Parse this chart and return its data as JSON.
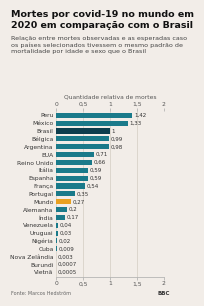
{
  "title": "Mortes por covid-19 no mundo em\n2020 em comparação com o Brasil",
  "subtitle": "Relação entre mortes observadas e as esperadas caso\nos países selecionados tivessem o mesmo padrão de\nmortalidade por idade e sexo que o Brasil",
  "xlabel": "Quantidade relativa de mortes",
  "source": "Fonte: Marcos Hedström",
  "categories": [
    "Peru",
    "México",
    "Brasil",
    "Bélgica",
    "Argentina",
    "EUA",
    "Reino Unido",
    "Itália",
    "Espanha",
    "França",
    "Portugal",
    "Mundo",
    "Alemanha",
    "Índia",
    "Venezuela",
    "Uruguai",
    "Nigéria",
    "Cuba",
    "Nova Zelândia",
    "Burundi",
    "Vietnã"
  ],
  "values": [
    1.42,
    1.33,
    1.0,
    0.99,
    0.98,
    0.71,
    0.66,
    0.59,
    0.59,
    0.54,
    0.35,
    0.27,
    0.2,
    0.17,
    0.04,
    0.03,
    0.02,
    0.009,
    0.003,
    0.0007,
    0.0005
  ],
  "bar_colors": [
    "#1a7a8a",
    "#1a7a8a",
    "#0d3d4d",
    "#1a7a8a",
    "#1a7a8a",
    "#1a7a8a",
    "#1a7a8a",
    "#1a7a8a",
    "#1a7a8a",
    "#1a7a8a",
    "#1a7a8a",
    "#e8a020",
    "#1a7a8a",
    "#1a7a8a",
    "#1a7a8a",
    "#1a7a8a",
    "#1a7a8a",
    "#1a7a8a",
    "#1a7a8a",
    "#1a7a8a",
    "#1a7a8a"
  ],
  "value_labels": [
    "1,42",
    "1,33",
    "1",
    "0,99",
    "0,98",
    "0,71",
    "0,66",
    "0,59",
    "0,59",
    "0,54",
    "0,35",
    "0,27",
    "0,2",
    "0,17",
    "0,04",
    "0,03",
    "0,02",
    "0,009",
    "0,003",
    "0,0007",
    "0,0005"
  ],
  "xlim": [
    0,
    2
  ],
  "xticks": [
    0,
    0.5,
    1,
    1.5,
    2
  ],
  "xtick_labels": [
    "0",
    "0,5",
    "1",
    "1,5",
    "2"
  ],
  "background_color": "#f2ede8",
  "title_fontsize": 6.8,
  "subtitle_fontsize": 4.6,
  "label_fontsize": 4.3,
  "tick_fontsize": 4.3,
  "value_fontsize": 4.0
}
